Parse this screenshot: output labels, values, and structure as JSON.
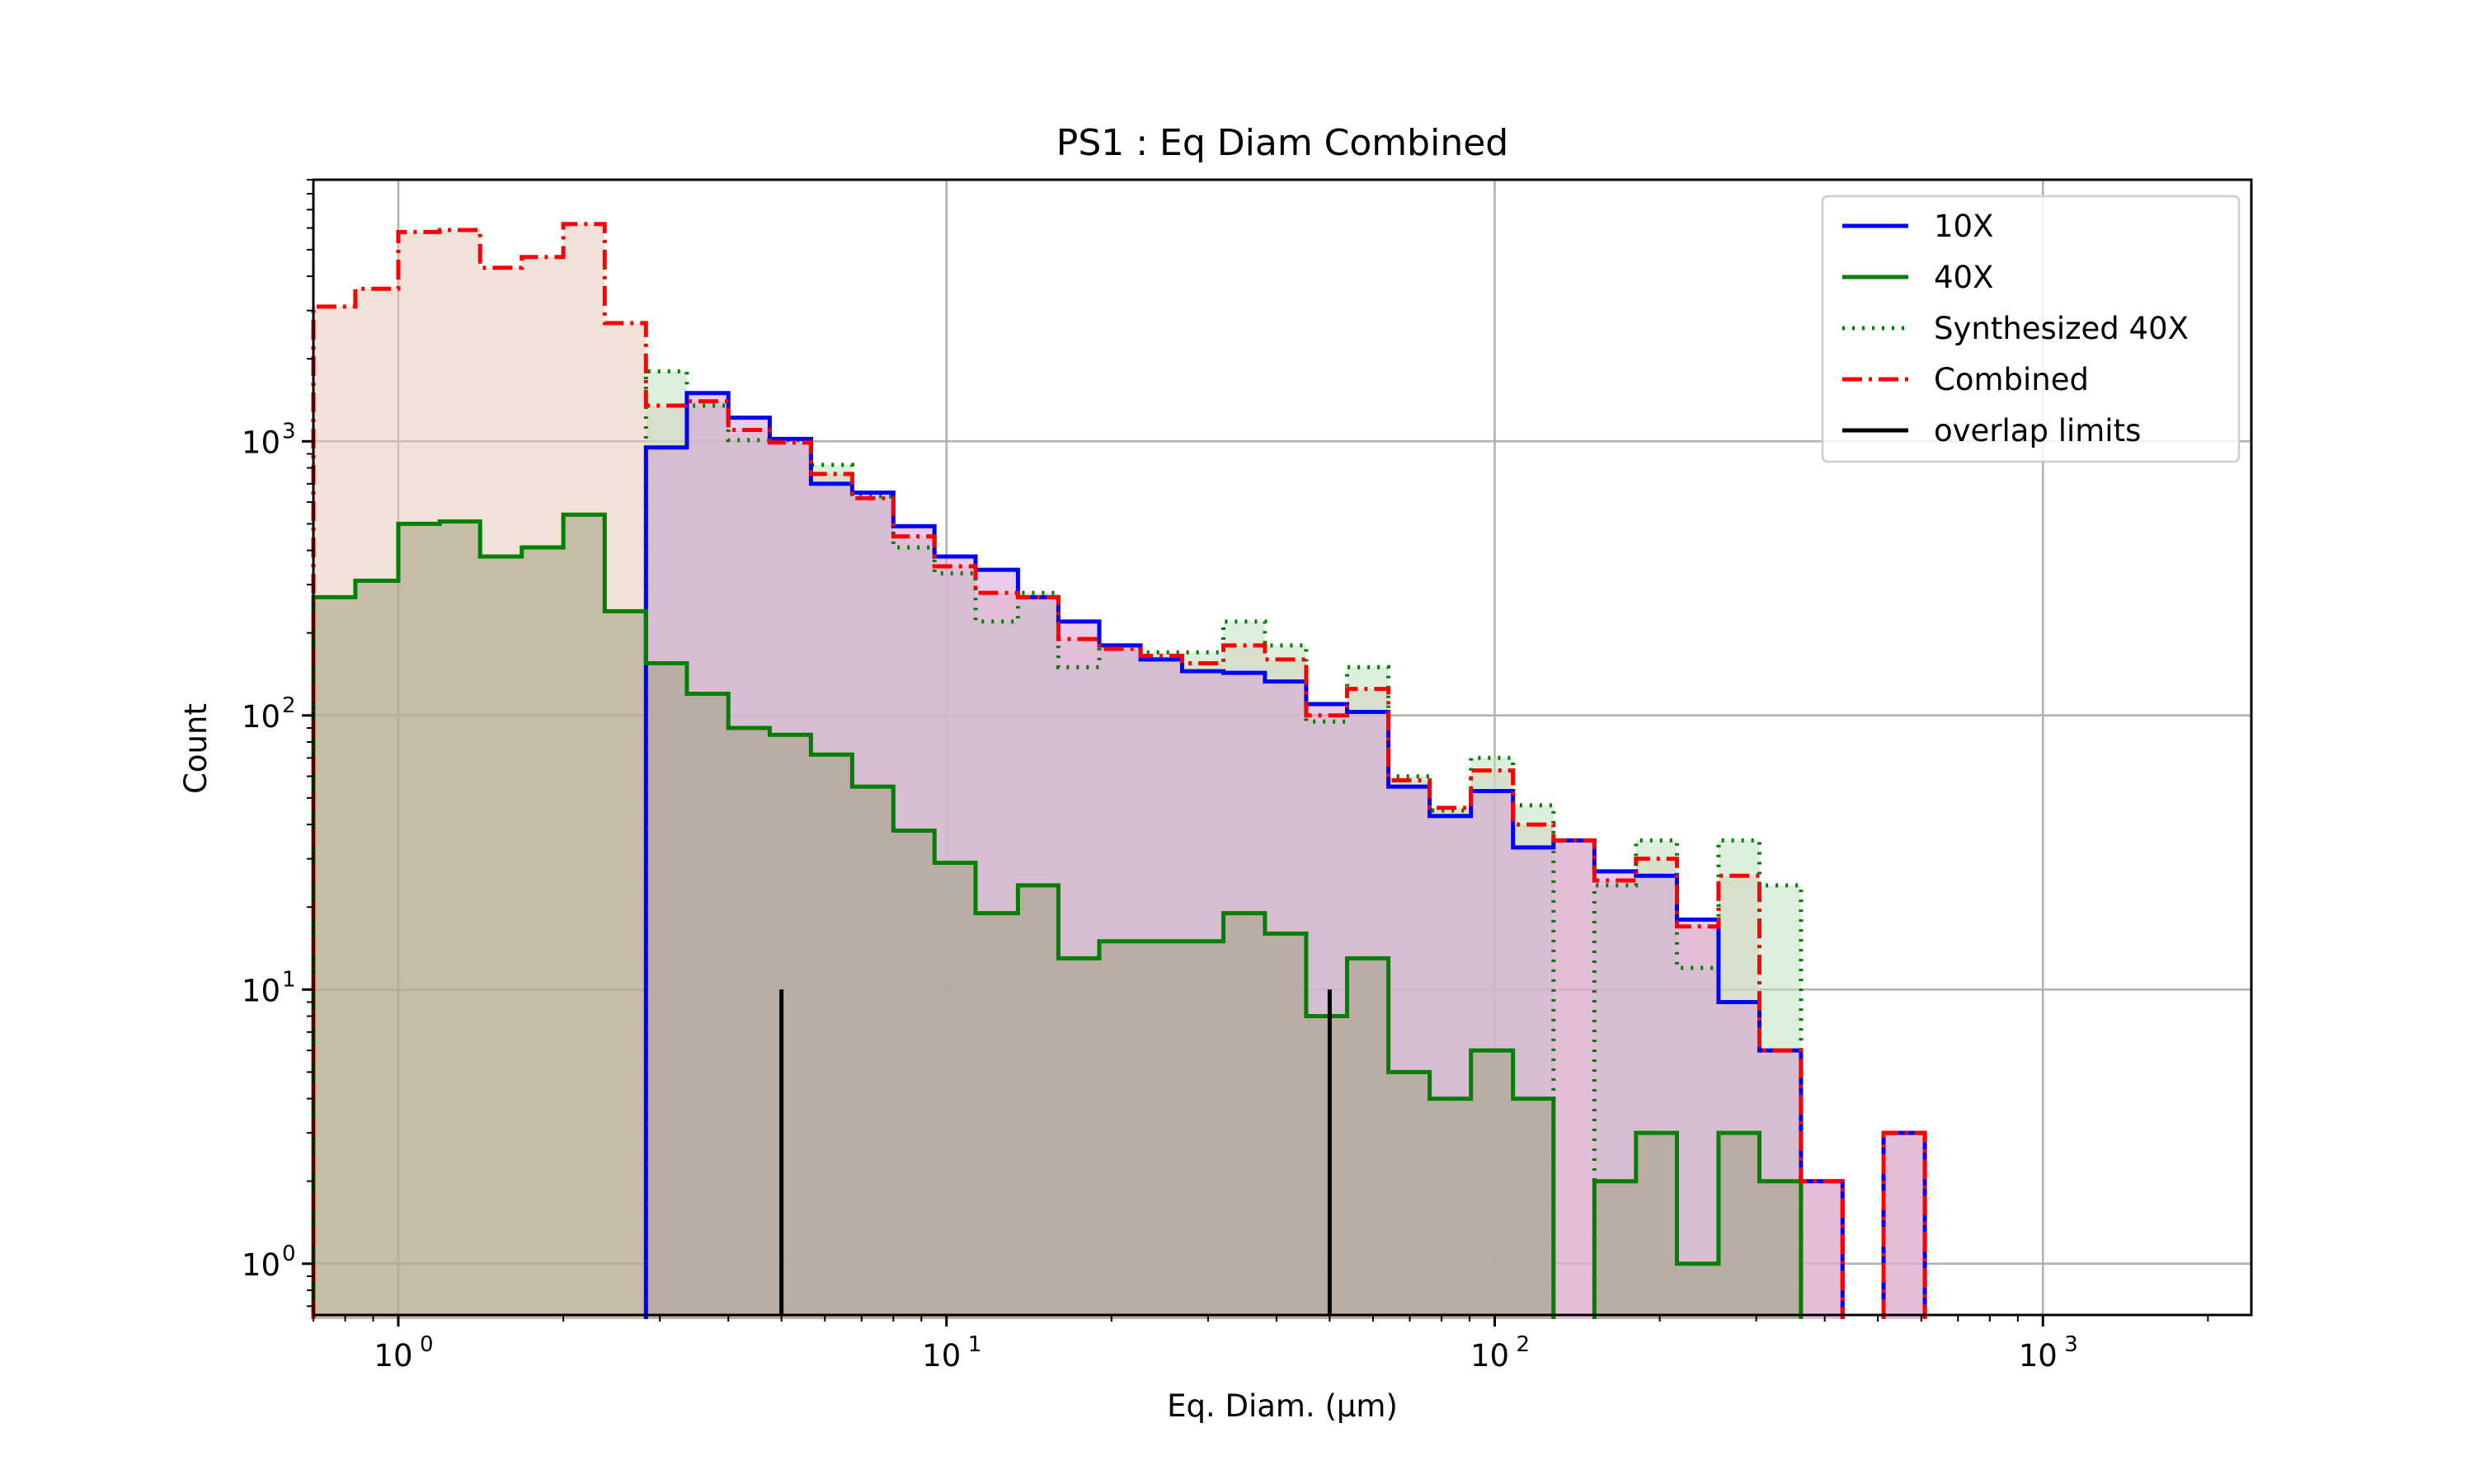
{
  "chart_data": {
    "type": "histogram",
    "title": "PS1 : Eq Diam Combined",
    "xlabel": "Eq. Diam. (μm)",
    "ylabel": "Count",
    "xscale": "log",
    "yscale": "log",
    "xlim": [
      0.7,
      2400
    ],
    "ylim": [
      0.65,
      9000
    ],
    "grid": true,
    "legend_position": "top-right",
    "x_ticks": [
      {
        "base": "10",
        "exp": "0",
        "value": 1
      },
      {
        "base": "10",
        "exp": "1",
        "value": 10
      },
      {
        "base": "10",
        "exp": "2",
        "value": 100
      },
      {
        "base": "10",
        "exp": "3",
        "value": 1000
      }
    ],
    "y_ticks": [
      {
        "base": "10",
        "exp": "0",
        "value": 1
      },
      {
        "base": "10",
        "exp": "1",
        "value": 10
      },
      {
        "base": "10",
        "exp": "2",
        "value": 100
      },
      {
        "base": "10",
        "exp": "3",
        "value": 1000
      }
    ],
    "bin_edges": [
      0.7,
      0.835,
      1.0,
      1.19,
      1.41,
      1.68,
      2.0,
      2.38,
      2.83,
      3.36,
      4.0,
      4.76,
      5.66,
      6.73,
      8.0,
      9.51,
      11.3,
      13.5,
      16.0,
      19.0,
      22.6,
      26.9,
      32.0,
      38.1,
      45.3,
      53.8,
      64.0,
      76.1,
      90.5,
      108,
      128,
      152,
      181,
      215,
      256,
      304,
      362,
      431,
      512,
      609
    ],
    "series": [
      {
        "name": "10X",
        "color": "#0000ff",
        "dash": "solid",
        "fill": "#d8a0d8",
        "values": [
          0,
          0,
          0,
          0,
          0,
          0,
          0,
          0,
          950,
          1500,
          1220,
          1020,
          700,
          650,
          490,
          380,
          340,
          270,
          220,
          180,
          160,
          145,
          143,
          133,
          110,
          103,
          55,
          43,
          53,
          33,
          35,
          27,
          26,
          18,
          9,
          6,
          2,
          0,
          3
        ]
      },
      {
        "name": "40X",
        "color": "#008000",
        "dash": "solid",
        "fill": "#a0a080",
        "values": [
          270,
          310,
          500,
          510,
          380,
          410,
          540,
          240,
          155,
          120,
          90,
          85,
          72,
          55,
          38,
          29,
          19,
          24,
          13,
          15,
          15,
          15,
          19,
          16,
          8,
          13,
          5,
          4,
          6,
          4,
          0,
          2,
          3,
          1,
          3,
          2,
          0,
          0,
          0
        ]
      },
      {
        "name": "Synthesized 40X",
        "color": "#008000",
        "dash": "dotted",
        "fill": "#c0e0c0",
        "values": [
          0,
          0,
          0,
          0,
          0,
          0,
          0,
          0,
          1800,
          1350,
          1010,
          1010,
          820,
          630,
          410,
          330,
          220,
          280,
          150,
          180,
          170,
          170,
          220,
          180,
          95,
          150,
          60,
          45,
          70,
          47,
          0,
          24,
          35,
          12,
          35,
          24,
          0,
          0,
          0
        ]
      },
      {
        "name": "Combined",
        "color": "#ff0000",
        "dash": "dashdot",
        "fill": "#e8c8b8",
        "values": [
          3100,
          3600,
          5800,
          5900,
          4300,
          4700,
          6200,
          2700,
          1350,
          1400,
          1100,
          990,
          760,
          620,
          450,
          350,
          280,
          270,
          190,
          175,
          165,
          155,
          180,
          160,
          100,
          125,
          58,
          46,
          63,
          40,
          35,
          25,
          30,
          17,
          26,
          6,
          2,
          0,
          3
        ]
      }
    ],
    "overlap_limits": {
      "name": "overlap limits",
      "color": "#000000",
      "x": [
        5,
        50
      ],
      "y_top": 10
    }
  }
}
